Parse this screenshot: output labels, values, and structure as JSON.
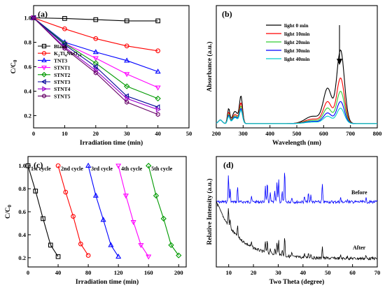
{
  "chart_data": [
    {
      "type": "line",
      "panel_label": "(a)",
      "xlabel": "Irradiation time (min)",
      "ylabel": "C/C0",
      "xlim": [
        0,
        50
      ],
      "ylim": [
        0.1,
        1.1
      ],
      "xticks": [
        "0",
        "10",
        "20",
        "30",
        "40",
        "50"
      ],
      "yticks": [
        "0.2",
        "0.4",
        "0.6",
        "0.8",
        "1.0"
      ],
      "x": [
        0,
        10,
        20,
        30,
        40
      ],
      "legend_position": "lower-left",
      "series": [
        {
          "name": "Blank",
          "color": "#000000",
          "marker": "square",
          "values": [
            1.0,
            0.995,
            0.985,
            0.975,
            0.975
          ]
        },
        {
          "name": "K2Ti4NbO14",
          "color": "#ff0000",
          "marker": "circle",
          "values": [
            1.0,
            0.91,
            0.83,
            0.77,
            0.73
          ]
        },
        {
          "name": "TNT3",
          "color": "#0000ff",
          "marker": "triangle-up",
          "values": [
            1.0,
            0.8,
            0.72,
            0.65,
            0.56
          ]
        },
        {
          "name": "STNT1",
          "color": "#ff00ff",
          "marker": "triangle-down",
          "values": [
            1.0,
            0.79,
            0.67,
            0.54,
            0.43
          ]
        },
        {
          "name": "STNT2",
          "color": "#009900",
          "marker": "diamond",
          "values": [
            1.0,
            0.79,
            0.63,
            0.44,
            0.34
          ]
        },
        {
          "name": "STNT3",
          "color": "#000099",
          "marker": "triangle-left",
          "values": [
            1.0,
            0.78,
            0.6,
            0.36,
            0.27
          ]
        },
        {
          "name": "STNT4",
          "color": "#9900cc",
          "marker": "triangle-right",
          "values": [
            1.0,
            0.76,
            0.57,
            0.34,
            0.25
          ]
        },
        {
          "name": "STNT5",
          "color": "#660066",
          "marker": "hexagon",
          "values": [
            1.0,
            0.75,
            0.55,
            0.31,
            0.21
          ]
        }
      ]
    },
    {
      "type": "line",
      "panel_label": "(b)",
      "xlabel": "Wavelength (nm)",
      "ylabel": "Absorbance (a.u.)",
      "xlim": [
        200,
        800
      ],
      "ylim": [
        0,
        1
      ],
      "xticks": [
        "200",
        "300",
        "400",
        "500",
        "600",
        "700",
        "800"
      ],
      "legend_position": "top-center",
      "series": [
        {
          "name": "light 0 min",
          "color": "#000000",
          "scale": 1.0
        },
        {
          "name": "light 10min",
          "color": "#ff0000",
          "scale": 0.62
        },
        {
          "name": "light 20min",
          "color": "#33cc33",
          "scale": 0.44
        },
        {
          "name": "light 30min",
          "color": "#0000ff",
          "scale": 0.3
        },
        {
          "name": "light 40min",
          "color": "#00cccc",
          "scale": 0.21
        }
      ]
    },
    {
      "type": "line",
      "panel_label": "(c)",
      "xlabel": "Irradiation time (min)",
      "ylabel": "C/C0",
      "xlim": [
        0,
        210
      ],
      "ylim": [
        0.12,
        1.08
      ],
      "xticks": [
        "0",
        "40",
        "80",
        "120",
        "160",
        "200"
      ],
      "yticks": [
        "0.2",
        "0.4",
        "0.6",
        "0.8",
        "1.0"
      ],
      "series": [
        {
          "name": "1st cycle",
          "color": "#000000",
          "marker": "square",
          "x": [
            0,
            10,
            20,
            30,
            40
          ],
          "values": [
            1.0,
            0.78,
            0.54,
            0.31,
            0.21
          ]
        },
        {
          "name": "2nd cycle",
          "color": "#ff0000",
          "marker": "circle",
          "x": [
            40,
            50,
            60,
            70,
            80
          ],
          "values": [
            1.0,
            0.77,
            0.56,
            0.32,
            0.22
          ]
        },
        {
          "name": "3rd cycle",
          "color": "#0000ff",
          "marker": "triangle-up",
          "x": [
            80,
            90,
            100,
            110,
            120
          ],
          "values": [
            1.0,
            0.74,
            0.53,
            0.31,
            0.21
          ]
        },
        {
          "name": "4th cycle",
          "color": "#ff00ff",
          "marker": "triangle-down",
          "x": [
            120,
            130,
            140,
            150,
            160
          ],
          "values": [
            1.0,
            0.74,
            0.51,
            0.31,
            0.21
          ]
        },
        {
          "name": "5th cycle",
          "color": "#009900",
          "marker": "diamond",
          "x": [
            160,
            170,
            180,
            190,
            200
          ],
          "values": [
            1.0,
            0.74,
            0.54,
            0.31,
            0.22
          ]
        }
      ]
    },
    {
      "type": "line",
      "panel_label": "(d)",
      "xlabel": "Two Theta (degree)",
      "ylabel": "Relative Intensity (a.u.)",
      "xlim": [
        5,
        70
      ],
      "xticks": [
        "10",
        "20",
        "30",
        "40",
        "50",
        "60",
        "70"
      ],
      "series": [
        {
          "name": "Before",
          "color": "#0000ff"
        },
        {
          "name": "After",
          "color": "#000000"
        }
      ]
    }
  ]
}
